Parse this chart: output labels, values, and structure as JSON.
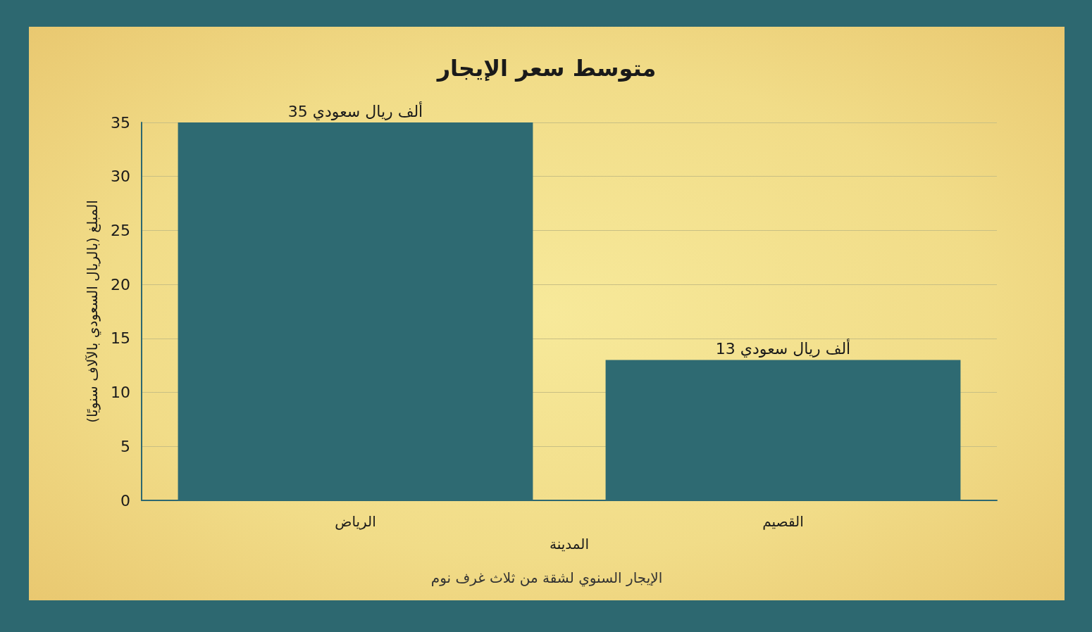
{
  "chart_data": {
    "type": "bar",
    "title": "متوسط سعر الإيجار",
    "xlabel": "المدينة",
    "ylabel": "المبلغ (بالريال السعودي بالآلاف سنويًا)",
    "annotations": [
      "الإيجار السنوي لشقة من ثلاث غرف نوم"
    ],
    "categories": [
      "الرياض",
      "القصيم"
    ],
    "series": [
      {
        "color": "#2e6a72",
        "values": [
          35,
          13
        ],
        "value_labels": [
          "35 ألف ريال سعودي",
          "13 ألف ريال سعودي"
        ]
      }
    ],
    "ylim": [
      0,
      35
    ],
    "yticks": [
      0,
      5,
      10,
      15,
      20,
      25,
      30,
      35
    ],
    "grid": "y"
  }
}
